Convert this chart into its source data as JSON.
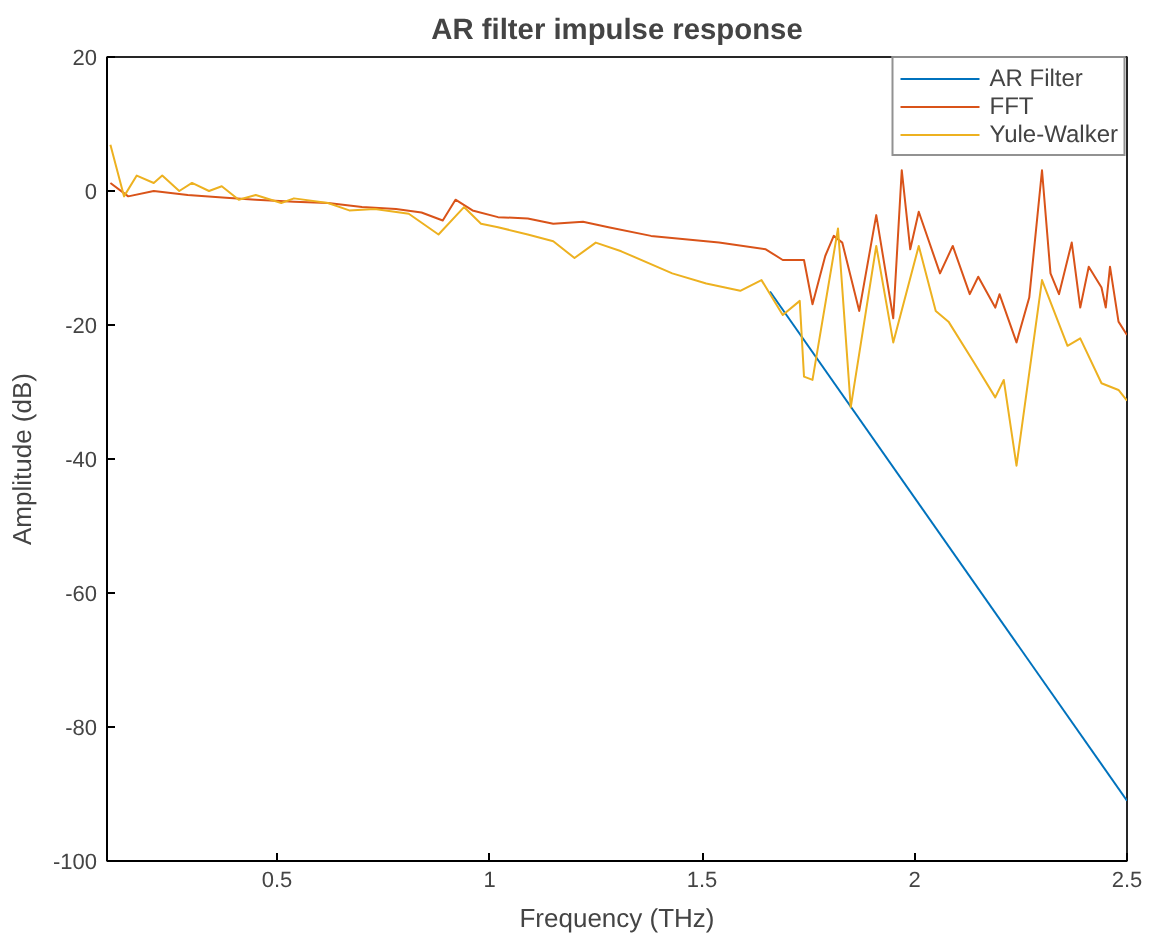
{
  "chart_data": {
    "type": "line",
    "title": "AR filter impulse response",
    "xlabel": "Frequency (THz)",
    "ylabel": "Amplitude (dB)",
    "xlim": [
      0.1,
      2.5
    ],
    "ylim": [
      -100,
      20
    ],
    "xticks": [
      0.5,
      1,
      1.5,
      2,
      2.5
    ],
    "yticks": [
      -100,
      -80,
      -60,
      -40,
      -20,
      0,
      20
    ],
    "grid": false,
    "legend": "top right",
    "line_style": "solid",
    "marker": "none",
    "series": [
      {
        "name": "AR Filter",
        "color": "#0072bd",
        "x": [
          1.66,
          2.5
        ],
        "values": [
          -15,
          -91
        ]
      },
      {
        "name": "FFT",
        "color": "#d95319",
        "x": [
          0.108,
          0.15,
          0.21,
          0.29,
          0.38,
          0.45,
          0.54,
          0.62,
          0.7,
          0.78,
          0.84,
          0.89,
          0.92,
          0.96,
          1.02,
          1.09,
          1.15,
          1.22,
          1.28,
          1.38,
          1.54,
          1.65,
          1.69,
          1.74,
          1.76,
          1.79,
          1.81,
          1.83,
          1.87,
          1.91,
          1.95,
          1.97,
          1.99,
          2.01,
          2.06,
          2.09,
          2.13,
          2.15,
          2.19,
          2.2,
          2.24,
          2.27,
          2.3,
          2.32,
          2.34,
          2.37,
          2.39,
          2.41,
          2.44,
          2.45,
          2.46,
          2.48,
          2.5
        ],
        "values": [
          1.2,
          -0.8,
          0,
          -0.6,
          -1,
          -1.3,
          -1.6,
          -1.8,
          -2.4,
          -2.7,
          -3.2,
          -4.4,
          -1.3,
          -2.9,
          -3.9,
          -4.1,
          -4.9,
          -4.6,
          -5.4,
          -6.7,
          -7.7,
          -8.7,
          -10.3,
          -10.3,
          -16.9,
          -9.7,
          -6.7,
          -7.7,
          -17.9,
          -3.6,
          -19,
          3.1,
          -8.7,
          -3.1,
          -12.3,
          -8.2,
          -15.4,
          -12.8,
          -17.4,
          -15.4,
          -22.6,
          -15.9,
          3.1,
          -12.3,
          -15.4,
          -7.7,
          -17.4,
          -11.3,
          -14.4,
          -17.4,
          -11.3,
          -19.5,
          -21.5
        ]
      },
      {
        "name": "Yule-Walker",
        "color": "#edb120",
        "x": [
          0.108,
          0.14,
          0.17,
          0.21,
          0.23,
          0.27,
          0.3,
          0.34,
          0.37,
          0.41,
          0.45,
          0.51,
          0.54,
          0.62,
          0.67,
          0.73,
          0.81,
          0.88,
          0.94,
          0.98,
          1.02,
          1.09,
          1.15,
          1.2,
          1.25,
          1.31,
          1.43,
          1.51,
          1.59,
          1.64,
          1.69,
          1.73,
          1.74,
          1.76,
          1.82,
          1.85,
          1.91,
          1.95,
          2.01,
          2.05,
          2.08,
          2.14,
          2.19,
          2.21,
          2.24,
          2.3,
          2.36,
          2.39,
          2.44,
          2.48,
          2.5
        ],
        "values": [
          6.9,
          -0.8,
          2.3,
          1.2,
          2.3,
          0,
          1.2,
          0,
          0.7,
          -1.3,
          -0.6,
          -1.8,
          -1.1,
          -1.8,
          -2.9,
          -2.7,
          -3.4,
          -6.5,
          -2.4,
          -4.9,
          -5.4,
          -6.5,
          -7.5,
          -10,
          -7.7,
          -9,
          -12.3,
          -13.8,
          -14.9,
          -13.3,
          -18.5,
          -16.4,
          -27.7,
          -28.2,
          -5.6,
          -32.3,
          -8.2,
          -22.6,
          -8.2,
          -17.9,
          -19.5,
          -25.6,
          -30.8,
          -28.2,
          -41,
          -13.3,
          -23.1,
          -22,
          -28.7,
          -29.7,
          -31.3
        ]
      }
    ]
  }
}
